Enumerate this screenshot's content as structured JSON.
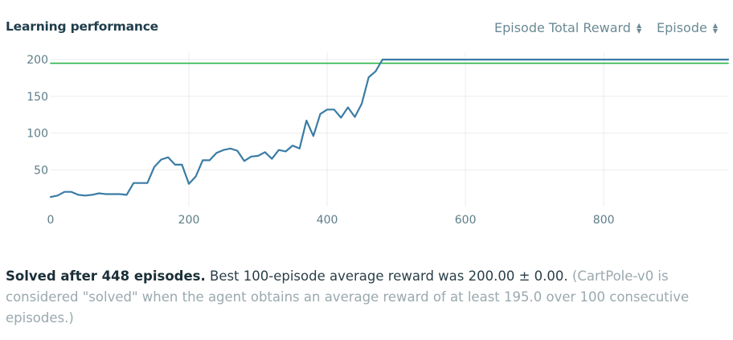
{
  "header": {
    "title": "Learning performance",
    "metric_select": {
      "selected": "Episode Total Reward"
    },
    "axis_select": {
      "selected": "Episode"
    }
  },
  "colors": {
    "series": "#3a7ca5",
    "threshold": "#2db34a",
    "grid": "#ececec",
    "tick": "#5e7d88"
  },
  "chart_data": {
    "type": "line",
    "title": "",
    "xlabel": "",
    "ylabel": "",
    "xlim": [
      0,
      980
    ],
    "ylim": [
      0,
      210
    ],
    "x_ticks": [
      0,
      200,
      400,
      600,
      800
    ],
    "y_ticks": [
      50,
      100,
      150,
      200
    ],
    "grid": true,
    "series": [
      {
        "values_x": [
          0,
          10,
          20,
          30,
          40,
          50,
          60,
          70,
          80,
          90,
          100,
          110,
          120,
          130,
          140,
          150,
          160,
          170,
          180,
          190,
          200,
          210,
          220,
          230,
          240,
          250,
          260,
          270,
          280,
          290,
          300,
          310,
          320,
          330,
          340,
          350,
          360,
          370,
          380,
          390,
          400,
          410,
          420,
          430,
          440,
          450,
          460,
          470,
          480,
          500,
          600,
          700,
          800,
          900,
          980
        ],
        "values_y": [
          13,
          15,
          20,
          20,
          16,
          15,
          16,
          18,
          17,
          17,
          17,
          16,
          32,
          32,
          32,
          54,
          64,
          67,
          57,
          57,
          31,
          41,
          63,
          63,
          73,
          77,
          79,
          76,
          62,
          68,
          69,
          74,
          65,
          77,
          75,
          83,
          79,
          117,
          96,
          126,
          132,
          132,
          121,
          135,
          122,
          140,
          176,
          184,
          200,
          200,
          200,
          200,
          200,
          200,
          200
        ]
      },
      {
        "name": "threshold",
        "values_x": [
          0,
          980
        ],
        "values_y": [
          195,
          195
        ]
      }
    ]
  },
  "summary": {
    "bold": "Solved after 448 episodes.",
    "normal": " Best 100-episode average reward was 200.00 ± 0.00.",
    "muted": " (CartPole-v0 is considered \"solved\" when the agent obtains an average reward of at least 195.0 over 100 consecutive episodes.)"
  }
}
